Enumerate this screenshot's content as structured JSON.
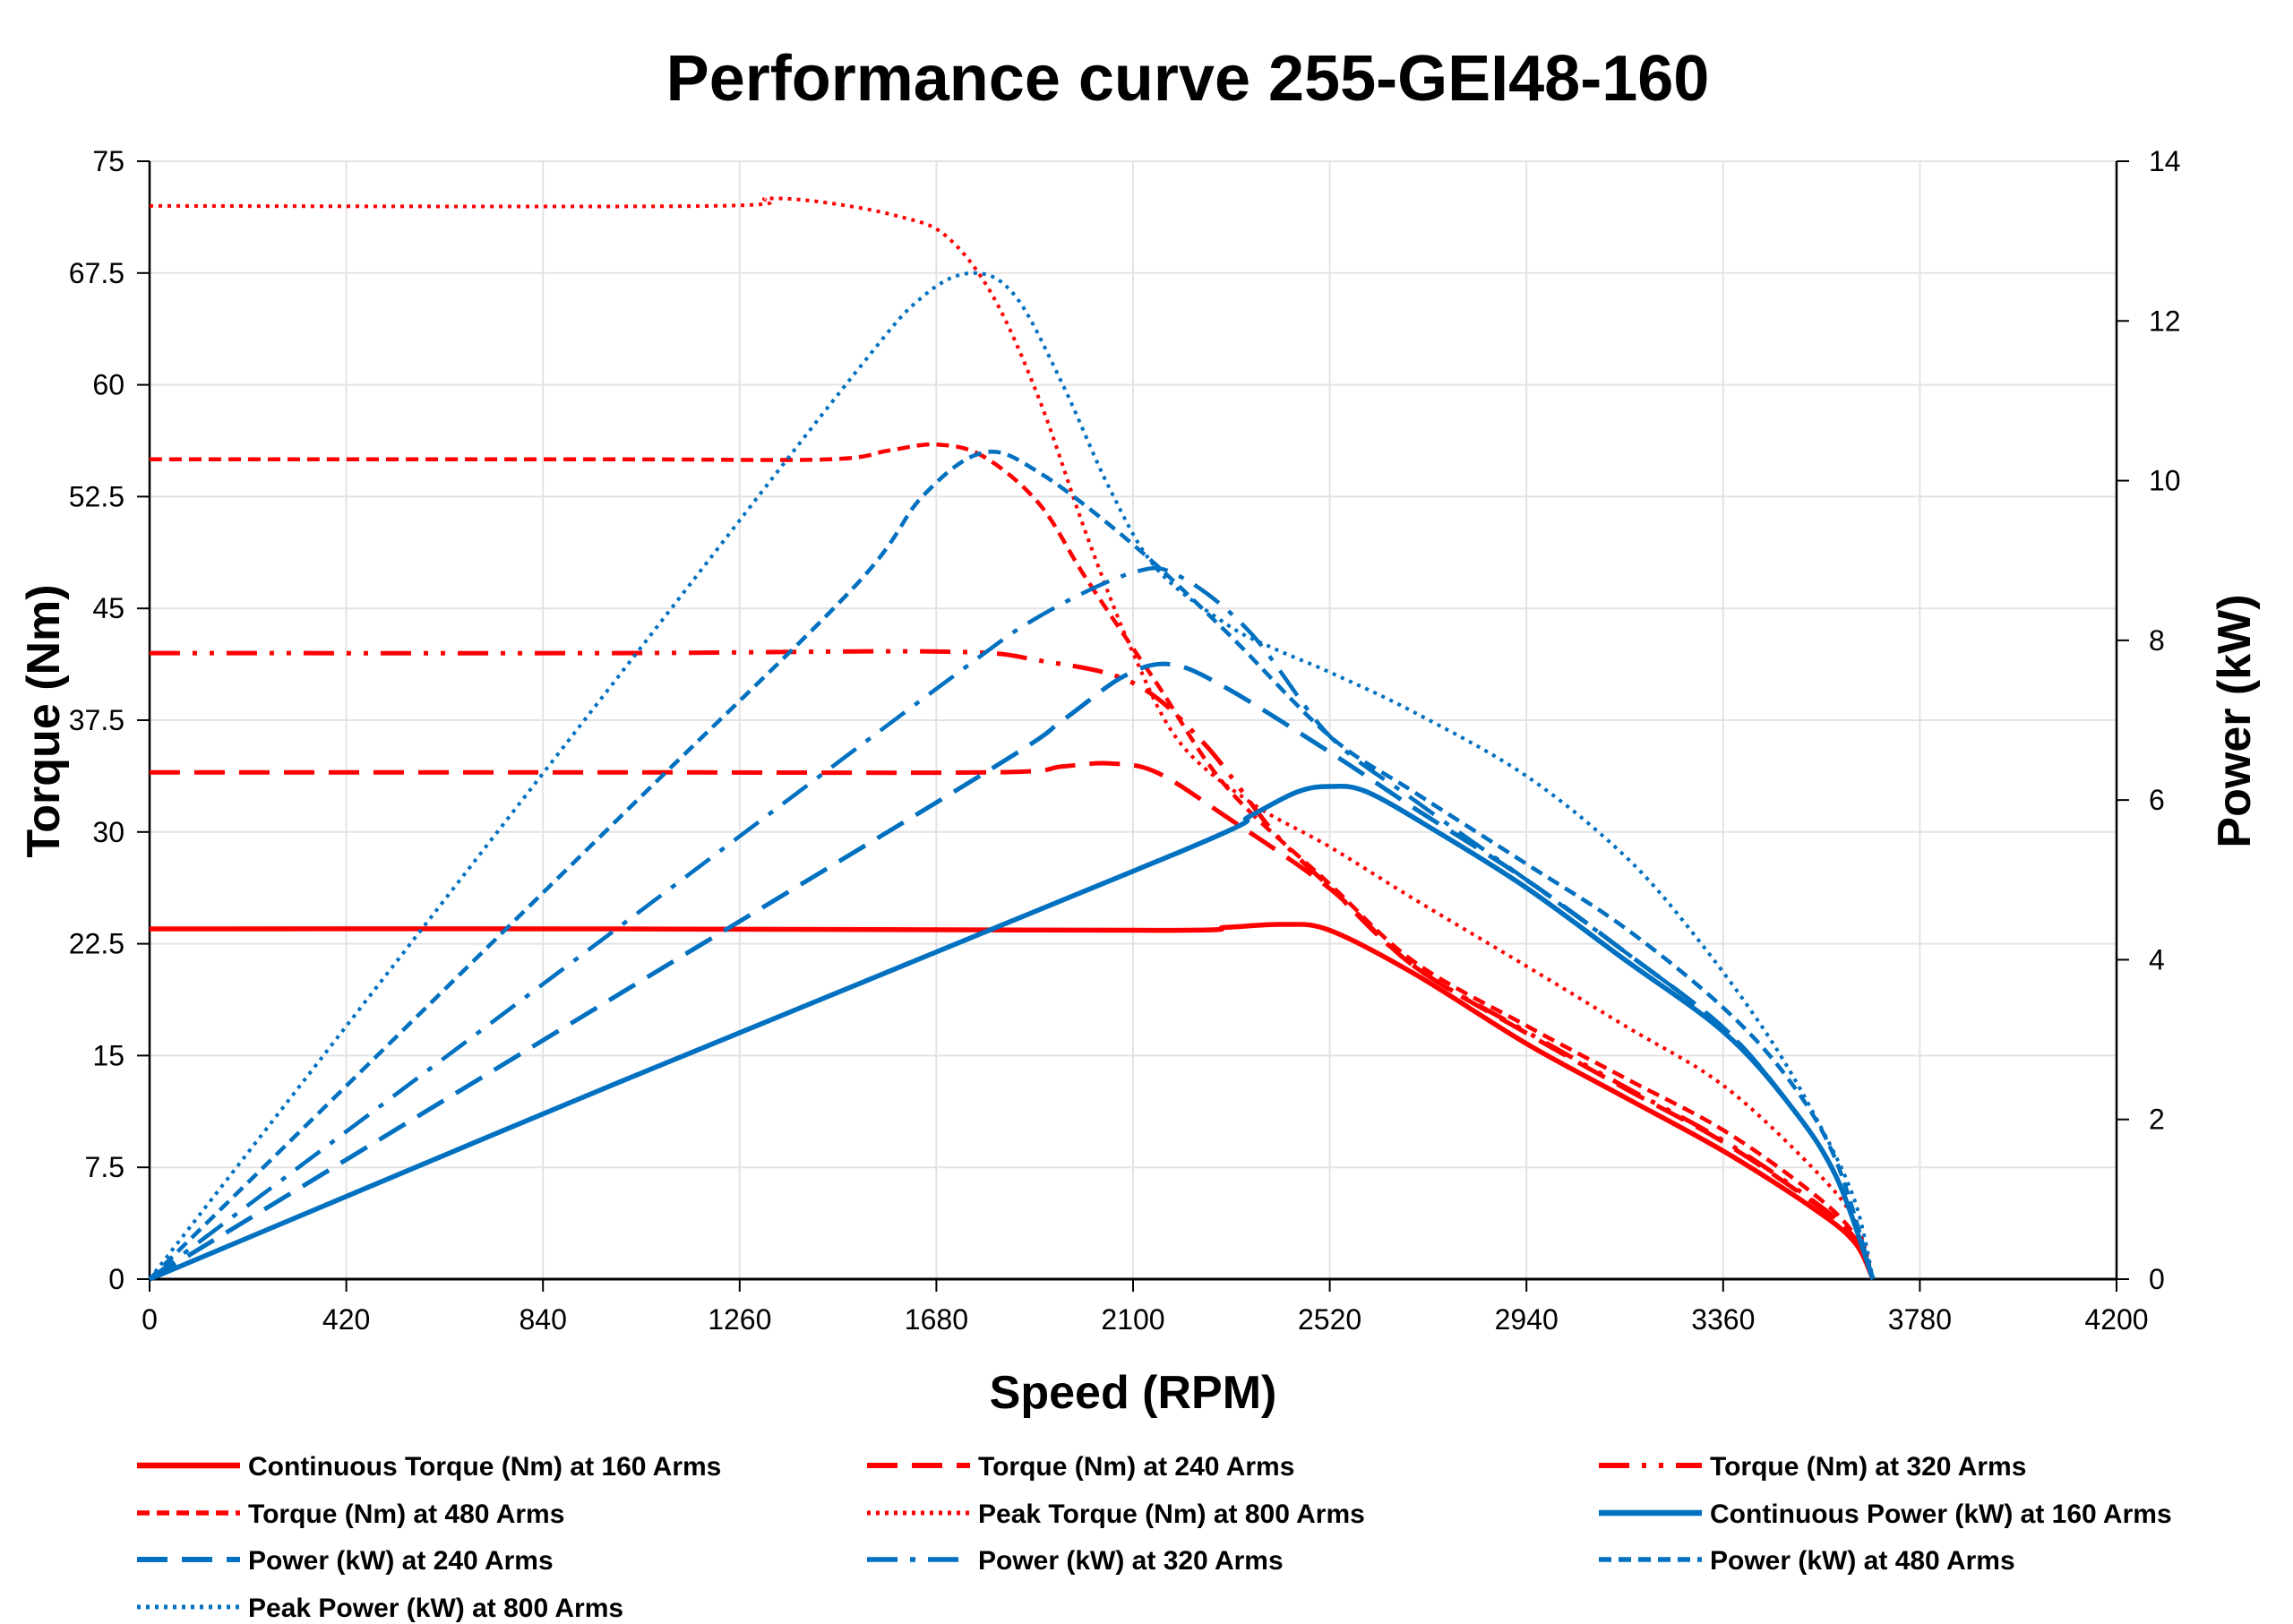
{
  "chart_data": {
    "type": "line",
    "title": "Performance curve 255-GEI48-160",
    "xlabel": "Speed (RPM)",
    "ylabel": "Torque (Nm)",
    "y2label": "Power (kW)",
    "xlim": [
      0,
      4200
    ],
    "ylim": [
      0,
      75
    ],
    "y2lim": [
      0,
      14
    ],
    "xticks": [
      0,
      420,
      840,
      1260,
      1680,
      2100,
      2520,
      2940,
      3360,
      3780,
      4200
    ],
    "yticks": [
      "0",
      "7.5",
      "15",
      "22.5",
      "30",
      "37.5",
      "45",
      "52.5",
      "60",
      "67.5",
      "75"
    ],
    "y2ticks": [
      0,
      2,
      4,
      6,
      8,
      10,
      12,
      14
    ],
    "grid": true,
    "legend_position": "bottom",
    "colors": {
      "torque": "#ff0000",
      "power": "#0070c0"
    },
    "series": [
      {
        "name": "Continuous Torque (Nm) at 160  Arms",
        "axis": "left",
        "color": "#ff0000",
        "style": "solid",
        "x": [
          0,
          1000,
          2150,
          2300,
          2420,
          2520,
          2700,
          2940,
          3150,
          3360,
          3550,
          3640,
          3680
        ],
        "y": [
          23.5,
          23.5,
          23.4,
          23.6,
          23.8,
          23.4,
          20.5,
          15.8,
          12.2,
          8.6,
          4.8,
          2.5,
          0
        ]
      },
      {
        "name": "Torque (Nm) at 240 Arms",
        "axis": "left",
        "color": "#ff0000",
        "style": "dash",
        "x": [
          0,
          1000,
          1800,
          1950,
          2050,
          2150,
          2300,
          2520,
          2700,
          2940,
          3150,
          3360,
          3550,
          3640,
          3680
        ],
        "y": [
          34,
          34,
          34,
          34.4,
          34.6,
          34,
          31,
          26.2,
          21,
          16.5,
          12.8,
          9.2,
          5.2,
          2.8,
          0
        ]
      },
      {
        "name": "Torque (Nm) at 320 Arms",
        "axis": "left",
        "color": "#ff0000",
        "style": "dashdotdot",
        "x": [
          0,
          1000,
          1700,
          1900,
          2100,
          2250,
          2400,
          2520,
          2700,
          2940,
          3150,
          3360,
          3550,
          3640,
          3680
        ],
        "y": [
          42,
          42,
          42.1,
          41.5,
          40,
          36,
          30,
          26.3,
          21,
          16.6,
          12.9,
          9.3,
          5.3,
          2.8,
          0
        ]
      },
      {
        "name": "Torque (Nm) at 480 Arms",
        "axis": "left",
        "color": "#ff0000",
        "style": "shortdash",
        "x": [
          0,
          1000,
          1450,
          1580,
          1680,
          1780,
          1900,
          2000,
          2150,
          2300,
          2520,
          2700,
          2940,
          3150,
          3360,
          3550,
          3640,
          3680
        ],
        "y": [
          55,
          55,
          55,
          55.6,
          56,
          55.2,
          52,
          47,
          40,
          33,
          26.5,
          21.3,
          17,
          13.5,
          10,
          5.8,
          3,
          0
        ]
      },
      {
        "name": "Peak Torque (Nm) at 800 Arms",
        "axis": "left",
        "color": "#ff0000",
        "style": "dot",
        "x": [
          0,
          1200,
          1320,
          1450,
          1600,
          1700,
          1800,
          1900,
          2000,
          2100,
          2200,
          2350,
          2520,
          2700,
          2940,
          3150,
          3360,
          3550,
          3640,
          3680
        ],
        "y": [
          72,
          72,
          72.5,
          72.2,
          71.3,
          70,
          66,
          59,
          50,
          42,
          36,
          32,
          29,
          25.5,
          21,
          17,
          13,
          7.5,
          4,
          0
        ]
      },
      {
        "name": "Continuous Power (kW) at 160 Arms",
        "axis": "right",
        "color": "#0070c0",
        "style": "solid",
        "x": [
          0,
          1000,
          2200,
          2350,
          2450,
          2520,
          2600,
          2750,
          2940,
          3150,
          3360,
          3500,
          3600,
          3680
        ],
        "y": [
          0,
          2.46,
          5.35,
          5.8,
          6.1,
          6.17,
          6.1,
          5.6,
          4.9,
          4.0,
          3.1,
          2.2,
          1.3,
          0
        ]
      },
      {
        "name": "Power (kW) at 240 Arms",
        "axis": "right",
        "color": "#0070c0",
        "style": "dash",
        "x": [
          0,
          1000,
          1800,
          1950,
          2080,
          2180,
          2300,
          2520,
          2700,
          2940,
          3150,
          3360,
          3500,
          3600,
          3680
        ],
        "y": [
          0,
          3.56,
          6.4,
          7.0,
          7.55,
          7.7,
          7.4,
          6.6,
          5.9,
          5.0,
          4.1,
          3.15,
          2.2,
          1.3,
          0
        ]
      },
      {
        "name": "Power (kW) at 320 Arms",
        "axis": "right",
        "color": "#0070c0",
        "style": "dashdot",
        "x": [
          0,
          1000,
          1700,
          1900,
          2100,
          2200,
          2350,
          2520,
          2700,
          2940,
          3150,
          3360,
          3500,
          3600,
          3680
        ],
        "y": [
          0,
          4.4,
          7.48,
          8.3,
          8.85,
          8.8,
          8.1,
          6.8,
          6.0,
          5.0,
          4.1,
          3.15,
          2.2,
          1.3,
          0
        ]
      },
      {
        "name": "Power (kW) at 480 Arms",
        "axis": "right",
        "color": "#0070c0",
        "style": "shortdash",
        "x": [
          0,
          1000,
          1500,
          1650,
          1780,
          1900,
          2100,
          2300,
          2520,
          2700,
          2940,
          3150,
          3360,
          3500,
          3600,
          3680
        ],
        "y": [
          0,
          5.76,
          8.64,
          9.8,
          10.35,
          10.1,
          9.2,
          8.1,
          6.8,
          6.1,
          5.2,
          4.4,
          3.4,
          2.5,
          1.5,
          0
        ]
      },
      {
        "name": "Peak Power (kW) at 800 Arms",
        "axis": "right",
        "color": "#0070c0",
        "style": "dot",
        "x": [
          0,
          1000,
          1500,
          1650,
          1760,
          1850,
          1950,
          2050,
          2150,
          2300,
          2400,
          2520,
          2700,
          2940,
          3150,
          3300,
          3450,
          3560,
          3640,
          3680
        ],
        "y": [
          0,
          7.54,
          11.3,
          12.3,
          12.6,
          12.3,
          11.2,
          9.9,
          8.9,
          8.2,
          7.9,
          7.6,
          7.1,
          6.3,
          5.3,
          4.3,
          3.1,
          2.0,
          1.0,
          0
        ]
      }
    ]
  }
}
